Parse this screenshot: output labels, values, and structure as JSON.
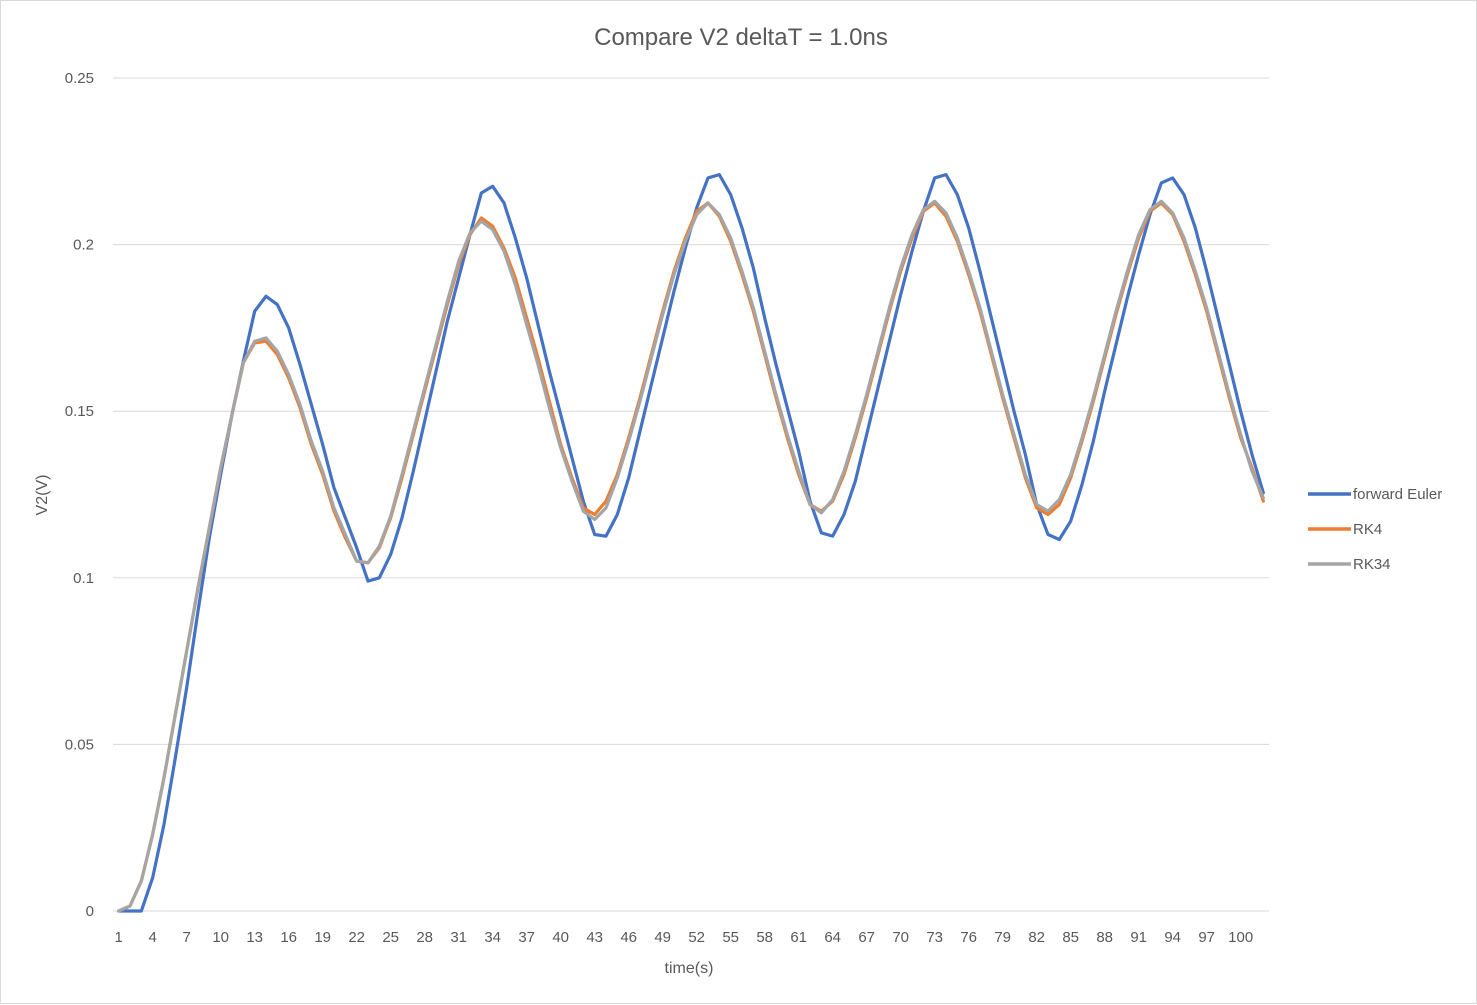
{
  "chart_data": {
    "type": "line",
    "title": "Compare V2 deltaT = 1.0ns",
    "xlabel": "time(s)",
    "ylabel": "V2(V)",
    "ylim": [
      0,
      0.25
    ],
    "yticks": [
      "0",
      "0.05",
      "0.1",
      "0.15",
      "0.2",
      "0.25"
    ],
    "ytick_values": [
      0,
      0.05,
      0.1,
      0.15,
      0.2,
      0.25
    ],
    "x_count": 102,
    "xticks": [
      1,
      4,
      7,
      10,
      13,
      16,
      19,
      22,
      25,
      28,
      31,
      34,
      37,
      40,
      43,
      46,
      49,
      52,
      55,
      58,
      61,
      64,
      67,
      70,
      73,
      76,
      79,
      82,
      85,
      88,
      91,
      94,
      97,
      100
    ],
    "grid": true,
    "legend_position": "right",
    "series": [
      {
        "name": "forward Euler",
        "color": "#4472c4",
        "values": [
          0,
          0,
          0,
          0.01,
          0.026,
          0.046,
          0.067,
          0.09,
          0.112,
          0.131,
          0.149,
          0.165,
          0.18,
          0.1845,
          0.182,
          0.175,
          0.164,
          0.152,
          0.14,
          0.127,
          0.118,
          0.109,
          0.099,
          0.1,
          0.107,
          0.118,
          0.132,
          0.147,
          0.162,
          0.177,
          0.19,
          0.203,
          0.2155,
          0.2175,
          0.2125,
          0.202,
          0.19,
          0.176,
          0.162,
          0.149,
          0.136,
          0.123,
          0.113,
          0.1125,
          0.119,
          0.13,
          0.144,
          0.158,
          0.172,
          0.186,
          0.199,
          0.211,
          0.22,
          0.221,
          0.215,
          0.205,
          0.193,
          0.178,
          0.164,
          0.151,
          0.138,
          0.123,
          0.1135,
          0.1125,
          0.119,
          0.129,
          0.143,
          0.157,
          0.171,
          0.185,
          0.198,
          0.21,
          0.22,
          0.221,
          0.215,
          0.205,
          0.192,
          0.178,
          0.164,
          0.15,
          0.137,
          0.122,
          0.113,
          0.1115,
          0.117,
          0.128,
          0.141,
          0.156,
          0.17,
          0.184,
          0.197,
          0.209,
          0.2185,
          0.22,
          0.215,
          0.205,
          0.192,
          0.178,
          0.164,
          0.15,
          0.137,
          0.1255
        ]
      },
      {
        "name": "RK4",
        "color": "#ed7d31",
        "values": [
          0,
          0.0015,
          0.009,
          0.023,
          0.04,
          0.059,
          0.078,
          0.097,
          0.115,
          0.133,
          0.149,
          0.1645,
          0.1705,
          0.171,
          0.167,
          0.16,
          0.151,
          0.14,
          0.131,
          0.12,
          0.112,
          0.105,
          0.1045,
          0.109,
          0.118,
          0.13,
          0.143,
          0.156,
          0.169,
          0.182,
          0.194,
          0.203,
          0.208,
          0.2055,
          0.199,
          0.19,
          0.178,
          0.166,
          0.153,
          0.14,
          0.13,
          0.121,
          0.119,
          0.123,
          0.131,
          0.142,
          0.154,
          0.167,
          0.18,
          0.192,
          0.202,
          0.21,
          0.2125,
          0.2085,
          0.201,
          0.191,
          0.18,
          0.167,
          0.154,
          0.142,
          0.131,
          0.122,
          0.12,
          0.123,
          0.131,
          0.142,
          0.154,
          0.167,
          0.18,
          0.192,
          0.202,
          0.21,
          0.2125,
          0.2085,
          0.201,
          0.191,
          0.18,
          0.167,
          0.154,
          0.142,
          0.13,
          0.121,
          0.119,
          0.122,
          0.13,
          0.141,
          0.153,
          0.166,
          0.179,
          0.191,
          0.202,
          0.21,
          0.2125,
          0.209,
          0.201,
          0.191,
          0.18,
          0.167,
          0.154,
          0.142,
          0.133,
          0.123
        ]
      },
      {
        "name": "RK34",
        "color": "#a5a5a5",
        "values": [
          0,
          0.0015,
          0.009,
          0.023,
          0.04,
          0.059,
          0.078,
          0.097,
          0.115,
          0.133,
          0.149,
          0.1645,
          0.171,
          0.172,
          0.168,
          0.161,
          0.152,
          0.141,
          0.132,
          0.121,
          0.113,
          0.105,
          0.1045,
          0.1095,
          0.1185,
          0.131,
          0.144,
          0.157,
          0.17,
          0.183,
          0.195,
          0.2035,
          0.207,
          0.2045,
          0.198,
          0.188,
          0.176,
          0.164,
          0.151,
          0.139,
          0.129,
          0.12,
          0.1175,
          0.121,
          0.13,
          0.141,
          0.153,
          0.166,
          0.179,
          0.191,
          0.201,
          0.209,
          0.2125,
          0.209,
          0.202,
          0.192,
          0.181,
          0.168,
          0.155,
          0.143,
          0.132,
          0.122,
          0.1195,
          0.1235,
          0.132,
          0.143,
          0.155,
          0.168,
          0.181,
          0.193,
          0.203,
          0.2105,
          0.213,
          0.2095,
          0.202,
          0.192,
          0.181,
          0.168,
          0.155,
          0.143,
          0.131,
          0.122,
          0.12,
          0.1235,
          0.131,
          0.142,
          0.154,
          0.167,
          0.18,
          0.192,
          0.203,
          0.2105,
          0.213,
          0.2095,
          0.202,
          0.192,
          0.181,
          0.168,
          0.155,
          0.143,
          0.132,
          0.124
        ]
      }
    ]
  }
}
